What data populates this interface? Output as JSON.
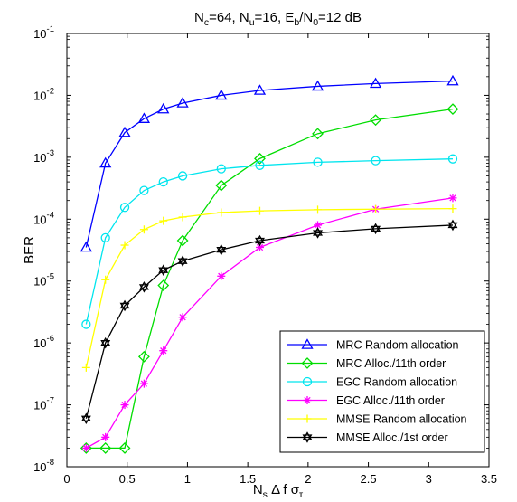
{
  "chart_data": {
    "type": "line",
    "title_parts": [
      "N",
      "c",
      "=64, N",
      "u",
      "=16, E",
      "b",
      "/N",
      "0",
      "=12 dB"
    ],
    "xlabel_parts": [
      "N",
      "s",
      " Δ f σ",
      "τ"
    ],
    "ylabel": "BER",
    "x_scale": "linear",
    "y_scale": "log",
    "xlim": [
      0,
      3.5
    ],
    "ylim": [
      1e-08,
      0.1
    ],
    "x_ticks": [
      0,
      0.5,
      1,
      1.5,
      2,
      2.5,
      3,
      3.5
    ],
    "x_tick_labels": [
      "0",
      "0.5",
      "1",
      "1.5",
      "2",
      "2.5",
      "3",
      "3.5"
    ],
    "y_tick_exponents": [
      -8,
      -7,
      -6,
      -5,
      -4,
      -3,
      -2,
      -1
    ],
    "y_tick_base": "10",
    "grid": false,
    "legend_position": "bottom-right",
    "x": [
      0.16,
      0.32,
      0.48,
      0.64,
      0.8,
      0.96,
      1.28,
      1.6,
      2.08,
      2.56,
      3.2
    ],
    "series": [
      {
        "name": "MRC Random allocation",
        "color": "#0000ff",
        "marker": "triangle",
        "values": [
          3.5e-05,
          0.0008,
          0.0025,
          0.0042,
          0.006,
          0.0075,
          0.01,
          0.012,
          0.014,
          0.0155,
          0.017
        ]
      },
      {
        "name": "MRC Alloc./11th order",
        "color": "#00dd00",
        "marker": "diamond",
        "values": [
          2e-08,
          2e-08,
          2e-08,
          6e-07,
          8.5e-06,
          4.5e-05,
          0.00035,
          0.00095,
          0.0024,
          0.004,
          0.006
        ]
      },
      {
        "name": "EGC Random allocation",
        "color": "#00e5ee",
        "marker": "circle",
        "values": [
          2e-06,
          5e-05,
          0.000155,
          0.00029,
          0.0004,
          0.0005,
          0.00065,
          0.00074,
          0.00083,
          0.00088,
          0.00094
        ]
      },
      {
        "name": "EGC Alloc./11th order",
        "color": "#ff00ff",
        "marker": "asterisk",
        "values": [
          2e-08,
          3e-08,
          1e-07,
          2.2e-07,
          7.5e-07,
          2.6e-06,
          1.2e-05,
          3.5e-05,
          8e-05,
          0.000145,
          0.00022
        ]
      },
      {
        "name": "MMSE Random allocation",
        "color": "#ffff00",
        "marker": "plus",
        "values": [
          4e-07,
          1.05e-05,
          3.8e-05,
          6.8e-05,
          9.4e-05,
          0.000108,
          0.000128,
          0.000136,
          0.000142,
          0.000145,
          0.000148
        ]
      },
      {
        "name": "MMSE Alloc./1st order",
        "color": "#000000",
        "marker": "hexagram",
        "values": [
          6e-08,
          1e-06,
          4e-06,
          8e-06,
          1.5e-05,
          2.1e-05,
          3.2e-05,
          4.5e-05,
          6e-05,
          7e-05,
          8e-05
        ]
      }
    ]
  }
}
